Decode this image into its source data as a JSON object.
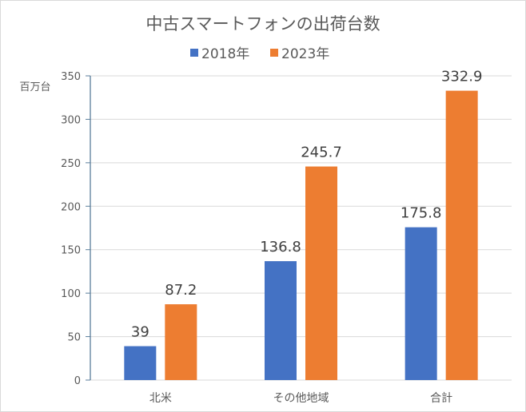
{
  "chart_data": {
    "type": "bar",
    "title": "中古スマートフォンの出荷台数",
    "ylabel": "百万台",
    "xlabel": "",
    "categories": [
      "北米",
      "その他地域",
      "合計"
    ],
    "series": [
      {
        "name": "2018年",
        "values": [
          39,
          136.8,
          175.8
        ],
        "color": "#4472c4",
        "labels": [
          "39",
          "136.8",
          "175.8"
        ]
      },
      {
        "name": "2023年",
        "values": [
          87.2,
          245.7,
          332.9
        ],
        "color": "#ed7d31",
        "labels": [
          "87.2",
          "245.7",
          "332.9"
        ]
      }
    ],
    "ylim": [
      0,
      350
    ],
    "yticks": [
      "0",
      "50",
      "100",
      "150",
      "200",
      "250",
      "300",
      "350"
    ],
    "grid": true,
    "legend": "top"
  }
}
